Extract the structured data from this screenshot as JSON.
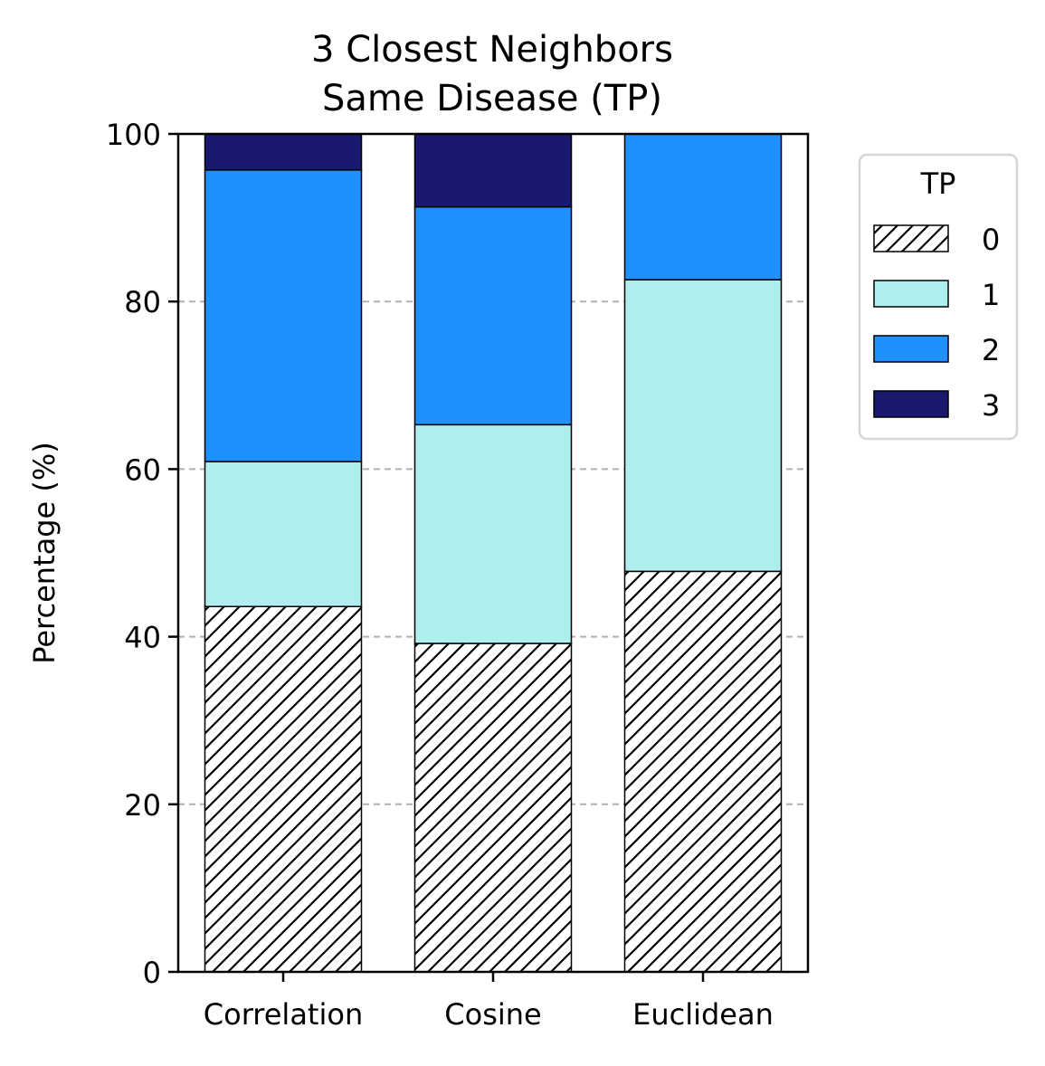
{
  "chart_data": {
    "type": "bar",
    "stacked": true,
    "title": "3 Closest Neighbors\nSame Disease (TP)",
    "title_lines": [
      "3 Closest Neighbors",
      "Same Disease (TP)"
    ],
    "xlabel": "",
    "ylabel": "Percentage (%)",
    "ylim": [
      0,
      100
    ],
    "yticks": [
      0,
      20,
      40,
      60,
      80,
      100
    ],
    "categories": [
      "Correlation",
      "Cosine",
      "Euclidean"
    ],
    "grid": "y, dashed",
    "legend": {
      "title": "TP",
      "position": "outside right, top"
    },
    "series": [
      {
        "name": "0",
        "values": [
          43.6,
          39.2,
          47.8
        ],
        "color": "#ffffff",
        "pattern": "hatch"
      },
      {
        "name": "1",
        "values": [
          17.3,
          26.1,
          34.8
        ],
        "color": "#afeeee",
        "pattern": "solid"
      },
      {
        "name": "2",
        "values": [
          34.8,
          26.0,
          17.4
        ],
        "color": "#1e90ff",
        "pattern": "solid"
      },
      {
        "name": "3",
        "values": [
          4.3,
          8.7,
          0.0
        ],
        "color": "#191970",
        "pattern": "solid"
      }
    ]
  }
}
